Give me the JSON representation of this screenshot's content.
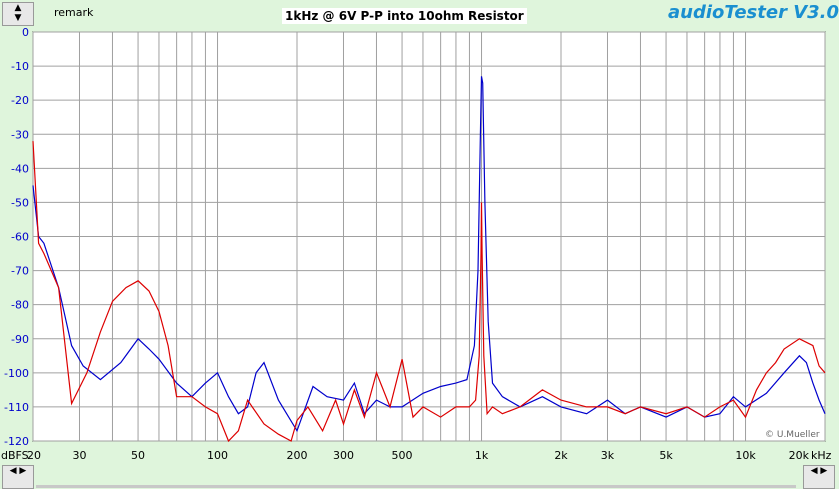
{
  "header": {
    "remark": "remark",
    "title": "1kHz @ 6V P-P into 10ohm Resistor",
    "brand": "audioTester V3.0"
  },
  "icons": {
    "scroll_up": "arrow-up-icon",
    "scroll_down": "arrow-down-icon",
    "scroll_left": "arrow-left-icon",
    "scroll_right": "arrow-right-icon"
  },
  "chart_data": {
    "type": "line",
    "title": "1kHz @ 6V P-P into 10ohm Resistor",
    "xlabel": "",
    "ylabel": "",
    "x_unit": "kHz",
    "y_unit": "dBFS",
    "x_scale": "log",
    "xlim": [
      20,
      20000
    ],
    "ylim": [
      -120,
      0
    ],
    "grid": true,
    "legend": "none",
    "colors": {
      "background": "#ffffff",
      "grid": "#a0a0a0",
      "blue_series": "#0000cc",
      "red_series": "#dd0000"
    },
    "x_ticks": [
      {
        "v": 20,
        "label": "20"
      },
      {
        "v": 30,
        "label": "30"
      },
      {
        "v": 50,
        "label": "50"
      },
      {
        "v": 100,
        "label": "100"
      },
      {
        "v": 200,
        "label": "200"
      },
      {
        "v": 300,
        "label": "300"
      },
      {
        "v": 500,
        "label": "500"
      },
      {
        "v": 1000,
        "label": "1k"
      },
      {
        "v": 2000,
        "label": "2k"
      },
      {
        "v": 3000,
        "label": "3k"
      },
      {
        "v": 5000,
        "label": "5k"
      },
      {
        "v": 10000,
        "label": "10k"
      },
      {
        "v": 20000,
        "label": "20k"
      }
    ],
    "x_first_label": "20",
    "y_ticks": [
      0,
      -10,
      -20,
      -30,
      -40,
      -50,
      -60,
      -70,
      -80,
      -90,
      -100,
      -110,
      -120
    ],
    "annotations": [
      "© U.Mueller"
    ],
    "series": [
      {
        "color": "#0000cc",
        "x": [
          20,
          21,
          22,
          25,
          28,
          31,
          36,
          43,
          50,
          55,
          60,
          70,
          80,
          90,
          100,
          110,
          120,
          130,
          140,
          150,
          170,
          200,
          230,
          260,
          300,
          330,
          360,
          400,
          450,
          500,
          600,
          700,
          800,
          880,
          940,
          970,
          990,
          1000,
          1010,
          1030,
          1060,
          1100,
          1200,
          1400,
          1700,
          2000,
          2500,
          3000,
          3500,
          4000,
          5000,
          6000,
          7000,
          8000,
          9000,
          10000,
          12000,
          14000,
          16000,
          17000,
          18000,
          19000,
          20000
        ],
        "y": [
          -45,
          -60,
          -62,
          -75,
          -92,
          -98,
          -102,
          -97,
          -90,
          -93,
          -96,
          -103,
          -107,
          -103,
          -100,
          -107,
          -112,
          -110,
          -100,
          -97,
          -108,
          -117,
          -104,
          -107,
          -108,
          -103,
          -112,
          -108,
          -110,
          -110,
          -106,
          -104,
          -103,
          -102,
          -92,
          -70,
          -30,
          -13,
          -15,
          -50,
          -85,
          -103,
          -107,
          -110,
          -107,
          -110,
          -112,
          -108,
          -112,
          -110,
          -113,
          -110,
          -113,
          -112,
          -107,
          -110,
          -106,
          -100,
          -95,
          -97,
          -103,
          -108,
          -112
        ]
      },
      {
        "color": "#dd0000",
        "x": [
          20,
          21,
          22,
          25,
          28,
          32,
          36,
          40,
          45,
          50,
          55,
          60,
          65,
          70,
          80,
          90,
          100,
          110,
          120,
          130,
          150,
          170,
          190,
          200,
          220,
          250,
          280,
          300,
          330,
          360,
          400,
          450,
          500,
          550,
          600,
          700,
          800,
          900,
          950,
          980,
          995,
          1000,
          1005,
          1020,
          1050,
          1100,
          1200,
          1400,
          1700,
          2000,
          2500,
          3000,
          3500,
          4000,
          5000,
          6000,
          7000,
          8000,
          9000,
          10000,
          11000,
          12000,
          13000,
          14000,
          16000,
          18000,
          19000,
          20000
        ],
        "y": [
          -32,
          -62,
          -65,
          -75,
          -109,
          -100,
          -88,
          -79,
          -75,
          -73,
          -76,
          -82,
          -92,
          -107,
          -107,
          -110,
          -112,
          -120,
          -117,
          -108,
          -115,
          -118,
          -120,
          -114,
          -110,
          -117,
          -108,
          -115,
          -105,
          -113,
          -100,
          -110,
          -96,
          -113,
          -110,
          -113,
          -110,
          -110,
          -108,
          -95,
          -65,
          -50,
          -65,
          -95,
          -112,
          -110,
          -112,
          -110,
          -105,
          -108,
          -110,
          -110,
          -112,
          -110,
          -112,
          -110,
          -113,
          -110,
          -108,
          -113,
          -105,
          -100,
          -97,
          -93,
          -90,
          -92,
          -98,
          -100
        ]
      }
    ]
  }
}
